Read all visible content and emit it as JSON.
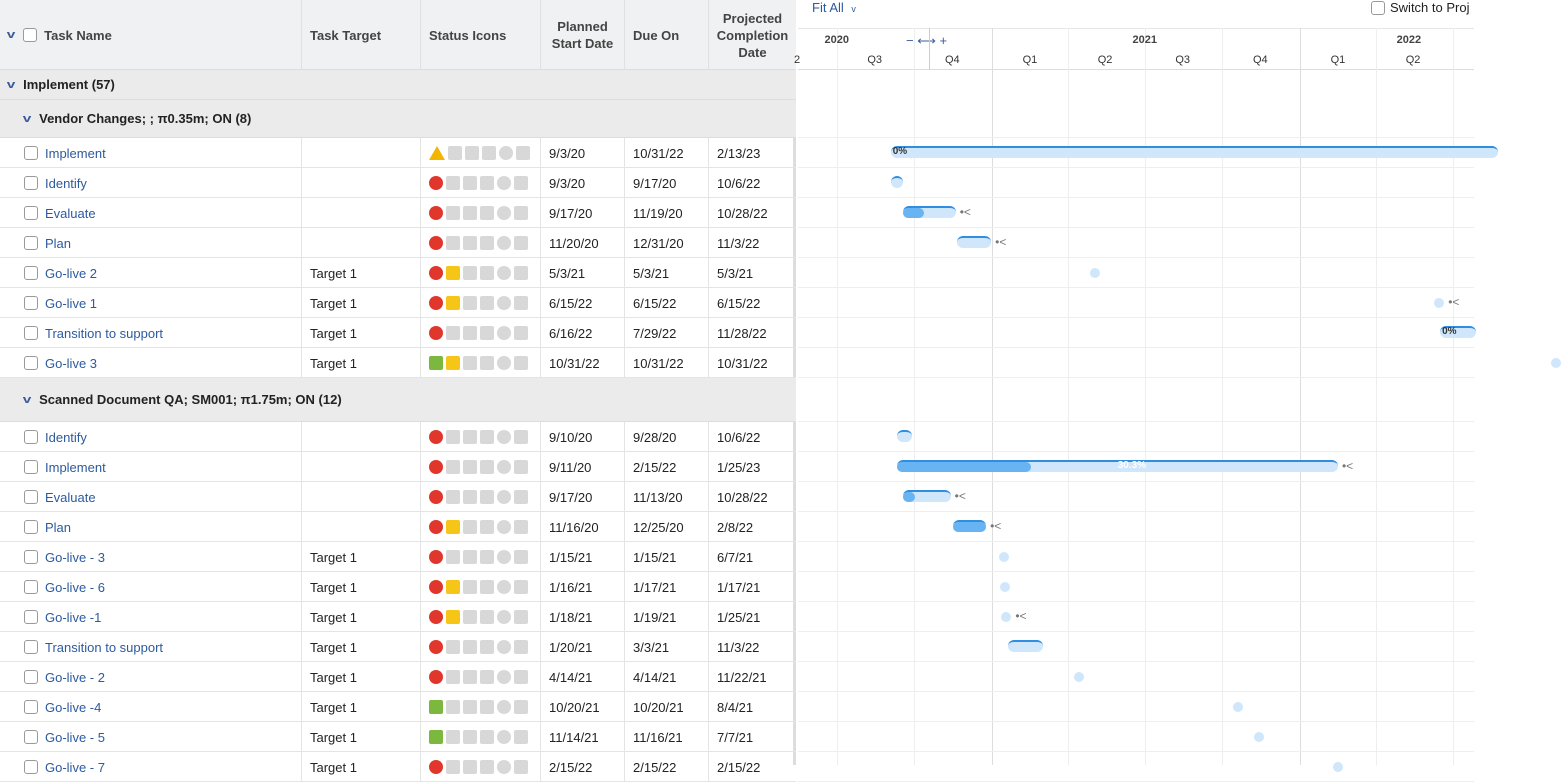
{
  "columns": {
    "task_name": "Task Name",
    "task_target": "Task Target",
    "status_icons": "Status Icons",
    "planned_start": "Planned Start Date",
    "due_on": "Due On",
    "projected": "Projected Completion Date"
  },
  "group": {
    "label": "Implement (57)"
  },
  "timeline": {
    "fit_label": "Fit All",
    "switch_label": "Switch to Proj",
    "zoom_minus": "−",
    "zoom_arrows": "⟷",
    "zoom_plus": "+",
    "years": [
      {
        "label": "2020",
        "date": "2020-07-01"
      },
      {
        "label": "2021",
        "date": "2021-07-01"
      },
      {
        "label": "2022",
        "date": "2022-05-10"
      }
    ],
    "quarters": [
      {
        "label": "2",
        "date": "2020-05-15"
      },
      {
        "label": "Q3",
        "date": "2020-08-15"
      },
      {
        "label": "Q4",
        "date": "2020-11-15"
      },
      {
        "label": "Q1",
        "date": "2021-02-15"
      },
      {
        "label": "Q2",
        "date": "2021-05-15"
      },
      {
        "label": "Q3",
        "date": "2021-08-15"
      },
      {
        "label": "Q4",
        "date": "2021-11-15"
      },
      {
        "label": "Q1",
        "date": "2022-02-15"
      },
      {
        "label": "Q2",
        "date": "2022-05-15"
      }
    ]
  },
  "subgroups": [
    {
      "label": "Vendor Changes; ; π0.35m; ON (8)",
      "tasks": [
        {
          "name": "Implement",
          "target": "",
          "health": "warn",
          "note": false,
          "start": "9/3/20",
          "due": "10/31/22",
          "projected": "2/13/23",
          "percent": "0%",
          "progress": 0,
          "link": false
        },
        {
          "name": "Identify",
          "target": "",
          "health": "red",
          "note": false,
          "start": "9/3/20",
          "due": "9/17/20",
          "projected": "10/6/22",
          "progress": 0,
          "link": false
        },
        {
          "name": "Evaluate",
          "target": "",
          "health": "red",
          "note": false,
          "start": "9/17/20",
          "due": "11/19/20",
          "projected": "10/28/22",
          "progress": 0.4,
          "link": true
        },
        {
          "name": "Plan",
          "target": "",
          "health": "red",
          "note": false,
          "start": "11/20/20",
          "due": "12/31/20",
          "projected": "11/3/22",
          "progress": 0,
          "link": true
        },
        {
          "name": "Go-live 2",
          "target": "Target 1",
          "health": "red",
          "note": true,
          "start": "5/3/21",
          "due": "5/3/21",
          "projected": "5/3/21",
          "link": false
        },
        {
          "name": "Go-live 1",
          "target": "Target 1",
          "health": "red",
          "note": true,
          "start": "6/15/22",
          "due": "6/15/22",
          "projected": "6/15/22",
          "link": true
        },
        {
          "name": "Transition to support",
          "target": "Target 1",
          "health": "red",
          "note": false,
          "start": "6/16/22",
          "due": "7/29/22",
          "projected": "11/28/22",
          "percent": "0%",
          "progress": 0,
          "link": false
        },
        {
          "name": "Go-live 3",
          "target": "Target 1",
          "health": "green",
          "note": true,
          "start": "10/31/22",
          "due": "10/31/22",
          "projected": "10/31/22",
          "link": false
        }
      ]
    },
    {
      "label": "Scanned Document QA; SM001; π1.75m; ON (12)",
      "tasks": [
        {
          "name": "Identify",
          "target": "",
          "health": "red",
          "note": false,
          "start": "9/10/20",
          "due": "9/28/20",
          "projected": "10/6/22",
          "progress": 0,
          "link": false
        },
        {
          "name": "Implement",
          "target": "",
          "health": "red",
          "note": false,
          "start": "9/11/20",
          "due": "2/15/22",
          "projected": "1/25/23",
          "percent": "30.3%",
          "progress": 0.303,
          "link": true
        },
        {
          "name": "Evaluate",
          "target": "",
          "health": "red",
          "note": false,
          "start": "9/17/20",
          "due": "11/13/20",
          "projected": "10/28/22",
          "progress": 0.25,
          "link": true
        },
        {
          "name": "Plan",
          "target": "",
          "health": "red",
          "note": true,
          "start": "11/16/20",
          "due": "12/25/20",
          "projected": "2/8/22",
          "progress": 1,
          "link": true
        },
        {
          "name": "Go-live - 3",
          "target": "Target 1",
          "health": "red",
          "note": false,
          "start": "1/15/21",
          "due": "1/15/21",
          "projected": "6/7/21",
          "link": false
        },
        {
          "name": "Go-live - 6",
          "target": "Target 1",
          "health": "red",
          "note": true,
          "start": "1/16/21",
          "due": "1/17/21",
          "projected": "1/17/21",
          "link": false
        },
        {
          "name": "Go-live -1",
          "target": "Target 1",
          "health": "red",
          "note": true,
          "start": "1/18/21",
          "due": "1/19/21",
          "projected": "1/25/21",
          "link": true
        },
        {
          "name": "Transition to support",
          "target": "Target 1",
          "health": "red",
          "note": false,
          "start": "1/20/21",
          "due": "3/3/21",
          "projected": "11/3/22",
          "progress": 0,
          "link": false
        },
        {
          "name": "Go-live - 2",
          "target": "Target 1",
          "health": "red",
          "note": false,
          "start": "4/14/21",
          "due": "4/14/21",
          "projected": "11/22/21",
          "link": false
        },
        {
          "name": "Go-live -4",
          "target": "Target 1",
          "health": "green",
          "note": false,
          "start": "10/20/21",
          "due": "10/20/21",
          "projected": "8/4/21",
          "link": false
        },
        {
          "name": "Go-live - 5",
          "target": "Target 1",
          "health": "green",
          "note": false,
          "start": "11/14/21",
          "due": "11/16/21",
          "projected": "7/7/21",
          "link": false
        },
        {
          "name": "Go-live - 7",
          "target": "Target 1",
          "health": "red",
          "note": false,
          "start": "2/15/22",
          "due": "2/15/22",
          "projected": "2/15/22",
          "link": false
        }
      ]
    }
  ]
}
